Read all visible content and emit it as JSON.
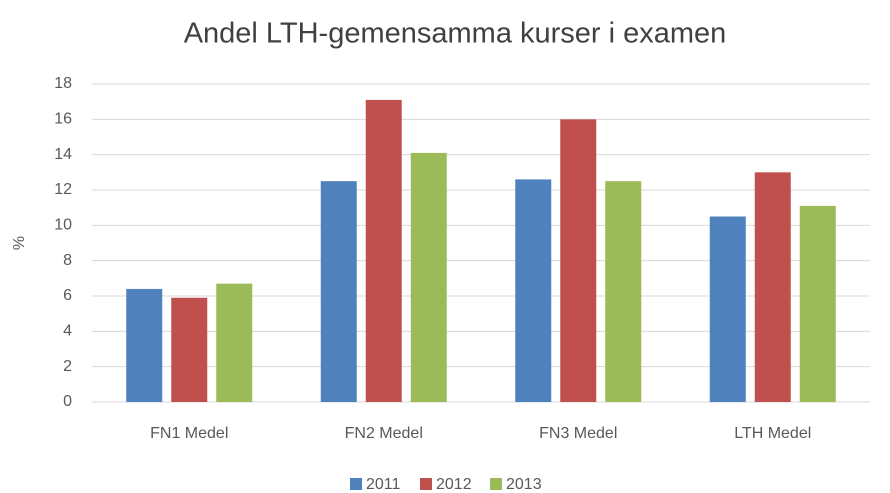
{
  "chart_data": {
    "type": "bar",
    "title": "Andel LTH-gemensamma kurser i examen",
    "y_label": "%",
    "categories": [
      "FN1 Medel",
      "FN2 Medel",
      "FN3 Medel",
      "LTH Medel"
    ],
    "series": [
      {
        "name": "2011",
        "color": "#4f81bd",
        "values": [
          6.4,
          12.5,
          12.6,
          10.5
        ]
      },
      {
        "name": "2012",
        "color": "#c0504d",
        "values": [
          5.9,
          17.1,
          16.0,
          13.0
        ]
      },
      {
        "name": "2013",
        "color": "#9bbb59",
        "values": [
          6.7,
          14.1,
          12.5,
          11.1
        ]
      }
    ],
    "ylim": [
      0,
      18
    ],
    "yticks": [
      0,
      2,
      4,
      6,
      8,
      10,
      12,
      14,
      16,
      18
    ],
    "grid": true,
    "legend": "bottom"
  }
}
